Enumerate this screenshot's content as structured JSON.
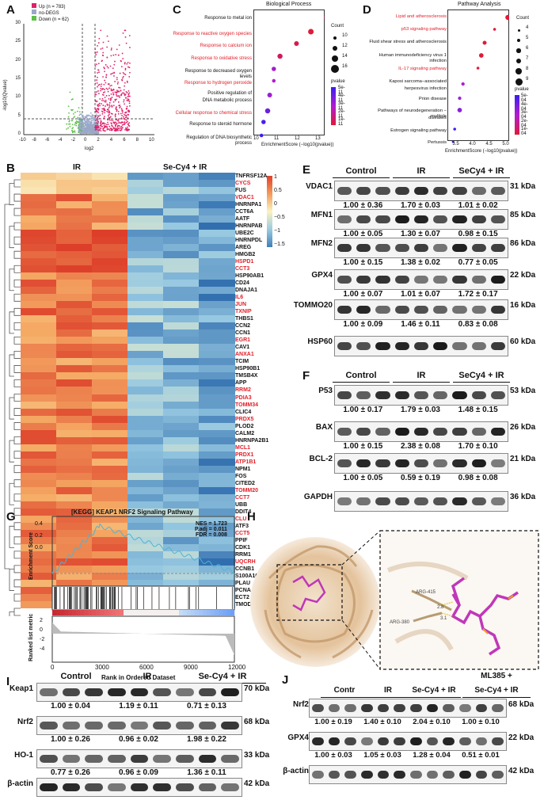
{
  "panels": {
    "A": {
      "label": "A",
      "legend": [
        "Up (n = 783)",
        "no-DEGS",
        "Down (n = 62)"
      ],
      "colors": [
        "#e0206a",
        "#9aa8c8",
        "#5fbf4a"
      ],
      "ylabel": "-log10(Qvalue)",
      "xlabel": "log2",
      "yticks": [
        "30",
        "25",
        "20",
        "15",
        "10",
        "5",
        "0"
      ],
      "xticks": [
        "-10",
        "-8",
        "-6",
        "-4",
        "-2",
        "0",
        "2",
        "4",
        "6",
        "8",
        "10"
      ]
    },
    "C": {
      "label": "C",
      "title": "Biological Process",
      "terms": [
        {
          "text": "Response to metal ion",
          "red": false
        },
        {
          "text": "Response to reactive oxygen species",
          "red": true
        },
        {
          "text": "Response to calcium ion",
          "red": true
        },
        {
          "text": "Response to oxidative stress",
          "red": true
        },
        {
          "text": "Response to decreased oxygen levels",
          "red": false
        },
        {
          "text": "Response to hydrogen peroxide",
          "red": true
        },
        {
          "text": "Positive regulation of",
          "red": false
        },
        {
          "text": "DNA metabolic process",
          "red": false
        },
        {
          "text": "Cellular response to chemical stress",
          "red": true
        },
        {
          "text": "Response to steroid hormone",
          "red": false
        },
        {
          "text": "Regulation of DNA biosynthetic process",
          "red": false
        }
      ],
      "xticks": [
        "10",
        "11",
        "12",
        "13"
      ],
      "xlabel": "EnrichmentScore (−log10(pvalue))",
      "count_title": "Count",
      "counts": [
        "10",
        "12",
        "14",
        "16"
      ],
      "pvalue_title": "pvalue",
      "pvalues": [
        "5e-11",
        "4e-11",
        "3e-11",
        "2e-11",
        "1e-11"
      ]
    },
    "D": {
      "label": "D",
      "title": "Pathway Analysis",
      "terms": [
        {
          "text": "Lipid and atherosclerosis",
          "red": true
        },
        {
          "text": "p53 signaling pathway",
          "red": true
        },
        {
          "text": "Fluid shear stress and atherosclerosis",
          "red": false
        },
        {
          "text": "Human immunodeficiency virus 1 infection",
          "red": false
        },
        {
          "text": "IL-17 signaling pathway",
          "red": true
        },
        {
          "text": "Kaposi sarcoma−associated",
          "red": false
        },
        {
          "text": "herpesvirus infection",
          "red": false
        },
        {
          "text": "Prion disease",
          "red": false
        },
        {
          "text": "Pathways of neurodegeneration − multiple",
          "red": false
        },
        {
          "text": "diseases",
          "red": false
        },
        {
          "text": "Estrogen signaling pathway",
          "red": false
        },
        {
          "text": "Pertussis",
          "red": false
        }
      ],
      "xticks": [
        "3.5",
        "4.0",
        "4.5",
        "5.0"
      ],
      "xlabel": "EnrichmentScore (−log10(pvalue))",
      "count_title": "Count",
      "counts": [
        "4",
        "5",
        "6",
        "7",
        "8",
        "9"
      ],
      "pvalue_title": "pvalue",
      "pvalues": [
        "5e-04",
        "4e-04",
        "3e-04",
        "2e-04",
        "1e-04"
      ]
    },
    "B": {
      "label": "B",
      "groups": [
        "IR",
        "Se-Cy4 + IR"
      ],
      "scale": [
        "1",
        "0.5",
        "0",
        "−0.5",
        "−1",
        "−1.5"
      ],
      "genes": [
        {
          "n": "TNFRSF12A",
          "r": false
        },
        {
          "n": "CYCS",
          "r": true
        },
        {
          "n": "FUS",
          "r": false
        },
        {
          "n": "VDAC1",
          "r": true
        },
        {
          "n": "HNRNPA1",
          "r": false
        },
        {
          "n": "CCT6A",
          "r": false
        },
        {
          "n": "AATF",
          "r": false
        },
        {
          "n": "HNRNPAB",
          "r": false
        },
        {
          "n": "UBE2C",
          "r": false
        },
        {
          "n": "HNRNPDL",
          "r": false
        },
        {
          "n": "AREG",
          "r": false
        },
        {
          "n": "HMGB2",
          "r": false
        },
        {
          "n": "HSPD1",
          "r": true
        },
        {
          "n": "CCT3",
          "r": true
        },
        {
          "n": "HSP90AB1",
          "r": false
        },
        {
          "n": "CD24",
          "r": false
        },
        {
          "n": "DNAJA1",
          "r": false
        },
        {
          "n": "IL6",
          "r": true
        },
        {
          "n": "JUN",
          "r": true
        },
        {
          "n": "TXNIP",
          "r": true
        },
        {
          "n": "THBS1",
          "r": false
        },
        {
          "n": "CCN2",
          "r": false
        },
        {
          "n": "CCN1",
          "r": false
        },
        {
          "n": "EGR1",
          "r": true
        },
        {
          "n": "CAV1",
          "r": false
        },
        {
          "n": "ANXA1",
          "r": true
        },
        {
          "n": "TCIM",
          "r": false
        },
        {
          "n": "HSP90B1",
          "r": false
        },
        {
          "n": "TMSB4X",
          "r": false
        },
        {
          "n": "APP",
          "r": false
        },
        {
          "n": "RRM2",
          "r": true
        },
        {
          "n": "PDIA3",
          "r": true
        },
        {
          "n": "TOMM34",
          "r": true
        },
        {
          "n": "CLIC4",
          "r": false
        },
        {
          "n": "PRDX5",
          "r": true
        },
        {
          "n": "PLOD2",
          "r": false
        },
        {
          "n": "CALM2",
          "r": false
        },
        {
          "n": "HNRNPA2B1",
          "r": false
        },
        {
          "n": "MCL1",
          "r": true
        },
        {
          "n": "PRDX1",
          "r": true
        },
        {
          "n": "ATP1B1",
          "r": true
        },
        {
          "n": "NPM1",
          "r": false
        },
        {
          "n": "FOS",
          "r": false
        },
        {
          "n": "CITED2",
          "r": false
        },
        {
          "n": "TOMM20",
          "r": true
        },
        {
          "n": "CCT7",
          "r": true
        },
        {
          "n": "UBB",
          "r": false
        },
        {
          "n": "DDIT4",
          "r": false
        },
        {
          "n": "CLU",
          "r": true
        },
        {
          "n": "ATF3",
          "r": false
        },
        {
          "n": "CCT5",
          "r": true
        },
        {
          "n": "PPIF",
          "r": false
        },
        {
          "n": "CDK1",
          "r": false
        },
        {
          "n": "RRM1",
          "r": false
        },
        {
          "n": "UQCRH",
          "r": true
        },
        {
          "n": "CCNB1",
          "r": false
        },
        {
          "n": "S100A16",
          "r": false
        },
        {
          "n": "PLAU",
          "r": false
        },
        {
          "n": "PCNA",
          "r": false
        },
        {
          "n": "ECT2",
          "r": false
        },
        {
          "n": "TMOD3",
          "r": false
        }
      ]
    },
    "E": {
      "label": "E",
      "groups": [
        "Control",
        "IR",
        "SeCy4 + IR"
      ],
      "rows": [
        {
          "protein": "VDAC1",
          "kda": "31 kDa",
          "quant": [
            "1.00 ± 0.36",
            "1.70 ± 0.03",
            "1.01 ± 0.02"
          ]
        },
        {
          "protein": "MFN1",
          "kda": "85 kDa",
          "quant": [
            "1.00 ± 0.05",
            "1.30 ± 0.07",
            "0.98 ± 0.15"
          ]
        },
        {
          "protein": "MFN2",
          "kda": "86 kDa",
          "quant": [
            "1.00 ± 0.15",
            "1.38 ± 0.02",
            "0.77 ± 0.05"
          ]
        },
        {
          "protein": "GPX4",
          "kda": "22 kDa",
          "quant": [
            "1.00 ± 0.07",
            "1.01 ± 0.07",
            "1.72 ± 0.17"
          ]
        },
        {
          "protein": "TOMMO20",
          "kda": "16 kDa",
          "quant": [
            "1.00 ± 0.09",
            "1.46 ± 0.11",
            "0.83 ± 0.08"
          ]
        },
        {
          "protein": "HSP60",
          "kda": "60 kDa",
          "quant": []
        }
      ]
    },
    "F": {
      "label": "F",
      "groups": [
        "Control",
        "IR",
        "SeCy4 + IR"
      ],
      "rows": [
        {
          "protein": "P53",
          "kda": "53 kDa",
          "quant": [
            "1.00 ± 0.17",
            "1.79 ± 0.03",
            "1.48 ± 0.15"
          ]
        },
        {
          "protein": "BAX",
          "kda": "26 kDa",
          "quant": [
            "1.00 ± 0.15",
            "2.38 ± 0.08",
            "1.70 ± 0.10"
          ]
        },
        {
          "protein": "BCL-2",
          "kda": "21 kDa",
          "quant": [
            "1.00 ± 0.05",
            "0.59 ± 0.19",
            "0.98 ± 0.08"
          ]
        },
        {
          "protein": "GAPDH",
          "kda": "36 kDa",
          "quant": []
        }
      ]
    },
    "G": {
      "label": "G",
      "title": "[KEGG] KEAP1 NRF2 Signaling Pathway",
      "stats": [
        "NES = 1.723",
        "P.adj = 0.011",
        "FDR = 0.008"
      ],
      "ylabel_top": "Enrichment Score",
      "ylabel_bottom": "Ranked list metric",
      "xlabel": "Rank in Ordered Dataset",
      "yticks_top": [
        "0.4",
        "0.2",
        "0.0"
      ],
      "yticks_bottom": [
        "2",
        "0",
        "-2",
        "-4"
      ],
      "xticks": [
        "0",
        "3000",
        "6000",
        "9000",
        "12000"
      ]
    },
    "H": {
      "label": "H",
      "residues": [
        "ARG-415",
        "ARG-380"
      ],
      "distances": [
        "2.8",
        "3.1"
      ]
    },
    "I": {
      "label": "I",
      "groups": [
        "Control",
        "IR",
        "Se-Cy4 + IR"
      ],
      "rows": [
        {
          "protein": "Keap1",
          "kda": "70 kDa",
          "quant": [
            "1.00 ± 0.04",
            "1.19 ± 0.11",
            "0.71 ± 0.13"
          ]
        },
        {
          "protein": "Nrf2",
          "kda": "68 kDa",
          "quant": [
            "1.00 ± 0.26",
            "0.96 ± 0.02",
            "1.98 ± 0.22"
          ]
        },
        {
          "protein": "HO-1",
          "kda": "33 kDa",
          "quant": [
            "0.77 ± 0.26",
            "0.96 ± 0.09",
            "1.36 ± 0.11"
          ]
        },
        {
          "protein": "β-actin",
          "kda": "42 kDa",
          "quant": []
        }
      ]
    },
    "J": {
      "label": "J",
      "groups": [
        "Contr",
        "IR",
        "Se-Cy4 + IR",
        "ML385 +",
        "Se-Cy4 + IR"
      ],
      "rows": [
        {
          "protein": "Nrf2",
          "kda": "68 kDa",
          "quant": [
            "1.00 ± 0.19",
            "1.40 ± 0.10",
            "2.04 ± 0.10",
            "1.00 ± 0.10"
          ]
        },
        {
          "protein": "GPX4",
          "kda": "22 kDa",
          "quant": [
            "1.00 ± 0.03",
            "1.05 ± 0.03",
            "1.28 ± 0.04",
            "0.51 ± 0.01"
          ]
        },
        {
          "protein": "β-actin",
          "kda": "42 kDa",
          "quant": []
        }
      ]
    }
  }
}
